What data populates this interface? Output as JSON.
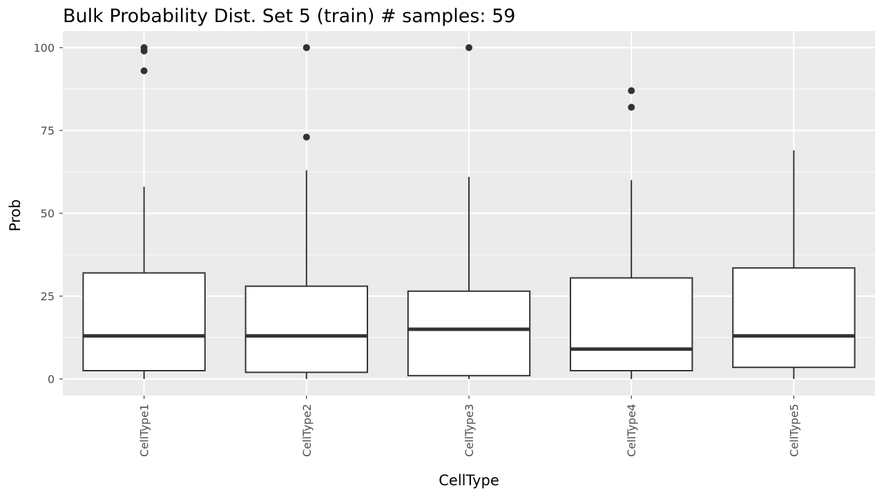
{
  "chart_data": {
    "type": "boxplot",
    "title": "Bulk Probability Dist. Set 5 (train) # samples: 59",
    "xlabel": "CellType",
    "ylabel": "Prob",
    "ylim": [
      -5,
      105
    ],
    "yticks": [
      0,
      25,
      50,
      75,
      100
    ],
    "grid": true,
    "legend": "none",
    "colors": {
      "panel": "#ebebeb",
      "grid": "#ffffff",
      "box_fill": "#ffffff",
      "box_line": "#333333",
      "tick_text": "#4d4d4d"
    },
    "categories": [
      "CellType1",
      "CellType2",
      "CellType3",
      "CellType4",
      "CellType5"
    ],
    "boxes": [
      {
        "category": "CellType1",
        "whisker_low": 0,
        "q1": 2.5,
        "median": 13,
        "q3": 32,
        "whisker_high": 58,
        "outliers": [
          93,
          99,
          100
        ]
      },
      {
        "category": "CellType2",
        "whisker_low": 0,
        "q1": 2,
        "median": 13,
        "q3": 28,
        "whisker_high": 63,
        "outliers": [
          73,
          100,
          100
        ]
      },
      {
        "category": "CellType3",
        "whisker_low": 0,
        "q1": 1,
        "median": 15,
        "q3": 26.5,
        "whisker_high": 61,
        "outliers": [
          100
        ]
      },
      {
        "category": "CellType4",
        "whisker_low": 0,
        "q1": 2.5,
        "median": 9,
        "q3": 30.5,
        "whisker_high": 60,
        "outliers": [
          82,
          87
        ]
      },
      {
        "category": "CellType5",
        "whisker_low": 0,
        "q1": 3.5,
        "median": 13,
        "q3": 33.5,
        "whisker_high": 69,
        "outliers": []
      }
    ]
  }
}
